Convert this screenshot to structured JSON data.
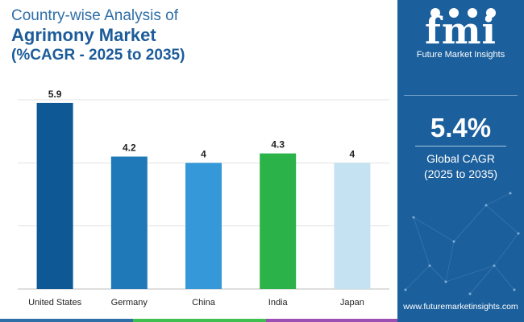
{
  "title": {
    "line1": "Country-wise Analysis of",
    "line2": "Agrimony Market",
    "line3": "(%CAGR - 2025 to 2035)"
  },
  "brand": {
    "logo_text": "fmi",
    "company": "Future Market Insights",
    "url": "www.futuremarketinsights.com"
  },
  "summary": {
    "value": "5.4%",
    "label_line1": "Global CAGR",
    "label_line2": "(2025 to 2035)"
  },
  "colors": {
    "panel": "#1b5f9c",
    "title": "#1d5c9a",
    "footer": [
      "#2f6fa8",
      "#3fbf4f",
      "#9b4fb3"
    ]
  },
  "chart_data": {
    "type": "bar",
    "categories": [
      "United States",
      "Germany",
      "China",
      "India",
      "Japan"
    ],
    "values": [
      5.9,
      4.2,
      4,
      4.3,
      4
    ],
    "value_labels": [
      "5.9",
      "4.2",
      "4",
      "4.3",
      "4"
    ],
    "bar_colors": [
      "#0e5896",
      "#1f78b8",
      "#3598d9",
      "#2bb34a",
      "#c5e2f3"
    ],
    "ylim": [
      0,
      6
    ],
    "grid": true,
    "legend": "none"
  }
}
